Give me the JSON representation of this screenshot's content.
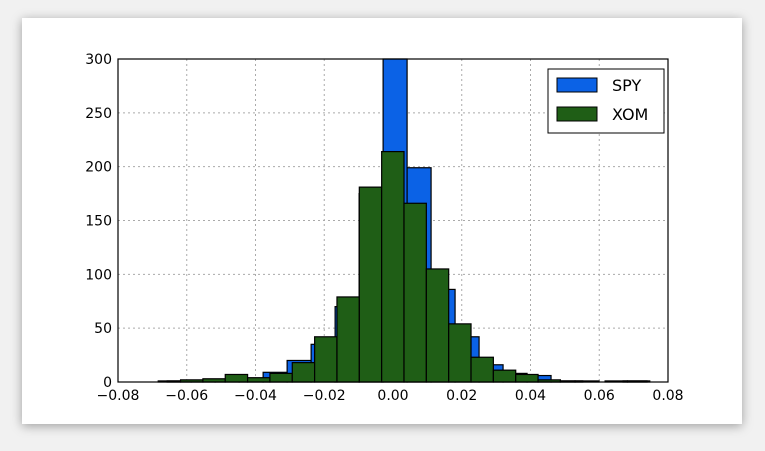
{
  "chart_data": {
    "type": "bar",
    "subtype": "histogram",
    "title": "",
    "xlabel": "",
    "ylabel": "",
    "xlim": [
      -0.08,
      0.08
    ],
    "ylim": [
      0,
      300
    ],
    "xticks": [
      "−0.08",
      "−0.06",
      "−0.04",
      "−0.02",
      "0.00",
      "0.02",
      "0.04",
      "0.06",
      "0.08"
    ],
    "xtick_values": [
      -0.08,
      -0.06,
      -0.04,
      -0.02,
      0.0,
      0.02,
      0.04,
      0.06,
      0.08
    ],
    "yticks": [
      "0",
      "50",
      "100",
      "150",
      "200",
      "250",
      "300"
    ],
    "ytick_values": [
      0,
      50,
      100,
      150,
      200,
      250,
      300
    ],
    "grid": true,
    "legend_position": "top-right",
    "series": [
      {
        "name": "SPY",
        "color": "#0b62e6",
        "bin_start": -0.0657,
        "bin_width": 0.00698,
        "counts": [
          1,
          1,
          2,
          3,
          9,
          20,
          35,
          70,
          175,
          300,
          199,
          86,
          42,
          16,
          8,
          6,
          1,
          1,
          0,
          1
        ]
      },
      {
        "name": "XOM",
        "color": "#1f5e16",
        "bin_start": -0.0683,
        "bin_width": 0.0065,
        "counts": [
          1,
          2,
          3,
          7,
          4,
          8,
          18,
          42,
          79,
          181,
          214,
          166,
          105,
          54,
          23,
          11,
          7,
          2,
          1,
          0,
          1,
          1
        ]
      }
    ]
  }
}
